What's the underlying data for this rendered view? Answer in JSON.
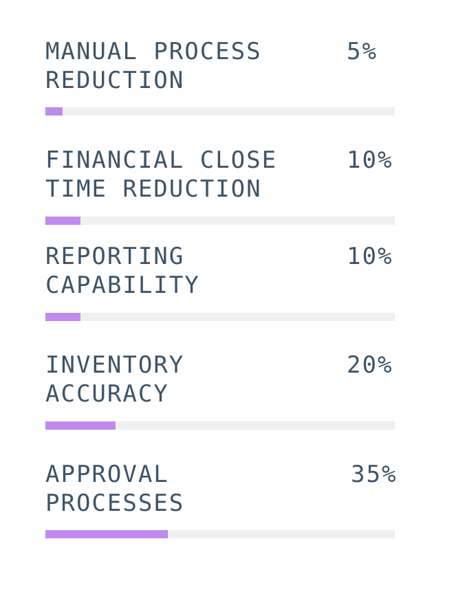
{
  "chart_data": {
    "type": "bar",
    "categories": [
      "MANUAL PROCESS REDUCTION",
      "FINANCIAL CLOSE TIME REDUCTION",
      "REPORTING CAPABILITY",
      "INVENTORY ACCURACY",
      "APPROVAL PROCESSES"
    ],
    "values": [
      5,
      10,
      10,
      20,
      35
    ],
    "value_labels": [
      "5%",
      "10%",
      "10%",
      "20%",
      "35%"
    ],
    "ylim": [
      0,
      100
    ],
    "colors": {
      "fill": "#bf8ced",
      "track": "#f0f0f0",
      "text": "#3d5468"
    }
  }
}
